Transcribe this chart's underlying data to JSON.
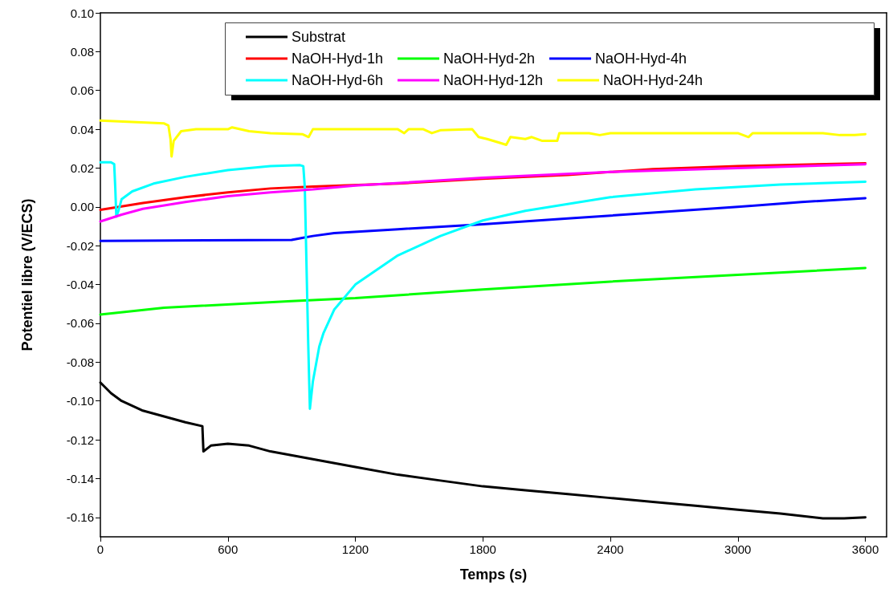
{
  "chart_data": {
    "type": "line",
    "xlabel": "Temps (s)",
    "ylabel": "Potentiel libre (V/ECS)",
    "xlim": [
      0,
      3700
    ],
    "xticks": [
      0,
      600,
      1200,
      1800,
      2400,
      3000,
      3600
    ],
    "ylim": [
      -0.17,
      0.1
    ],
    "yticks": [
      {
        "value": -0.16,
        "label": "-0.16"
      },
      {
        "value": -0.14,
        "label": "-0.14"
      },
      {
        "value": -0.12,
        "label": "-0.12"
      },
      {
        "value": -0.1,
        "label": "-0.10"
      },
      {
        "value": -0.08,
        "label": "-0.08"
      },
      {
        "value": -0.06,
        "label": "-0.06"
      },
      {
        "value": -0.04,
        "label": "-0.04"
      },
      {
        "value": -0.02,
        "label": "-0.02"
      },
      {
        "value": 0,
        "label": "0.00"
      },
      {
        "value": 0.02,
        "label": "0.02"
      },
      {
        "value": 0.04,
        "label": "0.04"
      },
      {
        "value": 0.06,
        "label": "0.06"
      },
      {
        "value": 0.08,
        "label": "0.08"
      },
      {
        "value": 0.1,
        "label": "0.10"
      }
    ],
    "grid": false,
    "legend": "top right",
    "marker": "none",
    "line_style": "solid",
    "series": [
      {
        "name": "Substrat",
        "color": "#000000",
        "x": [
          0,
          50,
          100,
          200,
          300,
          400,
          480,
          485,
          520,
          600,
          700,
          800,
          1000,
          1200,
          1400,
          1600,
          1800,
          2000,
          2200,
          2400,
          2600,
          2800,
          3000,
          3200,
          3400,
          3500,
          3600
        ],
        "values": [
          -0.0905,
          -0.096,
          -0.1,
          -0.105,
          -0.108,
          -0.111,
          -0.113,
          -0.126,
          -0.123,
          -0.122,
          -0.123,
          -0.126,
          -0.13,
          -0.134,
          -0.138,
          -0.141,
          -0.144,
          -0.146,
          -0.148,
          -0.15,
          -0.152,
          -0.154,
          -0.156,
          -0.158,
          -0.1605,
          -0.1605,
          -0.16
        ]
      },
      {
        "name": "NaOH-Hyd-1h",
        "color": "#ff0000",
        "x": [
          0,
          200,
          400,
          600,
          800,
          1000,
          1400,
          1800,
          2200,
          2600,
          3000,
          3600
        ],
        "values": [
          -0.0015,
          0.002,
          0.005,
          0.0075,
          0.0095,
          0.0105,
          0.012,
          0.0145,
          0.0165,
          0.0195,
          0.021,
          0.0225
        ]
      },
      {
        "name": "NaOH-Hyd-2h",
        "color": "#00ff00",
        "x": [
          0,
          300,
          900,
          1200,
          1800,
          2400,
          3000,
          3600
        ],
        "values": [
          -0.0555,
          -0.052,
          -0.0485,
          -0.047,
          -0.0425,
          -0.0385,
          -0.035,
          -0.0315
        ]
      },
      {
        "name": "NaOH-Hyd-4h",
        "color": "#0000ff",
        "x": [
          0,
          900,
          950,
          1000,
          1100,
          1400,
          1800,
          2200,
          2600,
          3000,
          3300,
          3600
        ],
        "values": [
          -0.0175,
          -0.017,
          -0.016,
          -0.015,
          -0.0135,
          -0.0115,
          -0.009,
          -0.006,
          -0.003,
          0.0,
          0.0025,
          0.0045
        ]
      },
      {
        "name": "NaOH-Hyd-6h",
        "color": "#00ffff",
        "x": [
          0,
          50,
          65,
          70,
          75,
          85,
          100,
          150,
          250,
          400,
          600,
          800,
          940,
          955,
          962,
          970,
          978,
          986,
          1000,
          1030,
          1050,
          1100,
          1200,
          1400,
          1600,
          1800,
          2000,
          2400,
          2800,
          3200,
          3600
        ],
        "values": [
          0.023,
          0.023,
          0.022,
          0.01,
          -0.005,
          -0.002,
          0.004,
          0.008,
          0.012,
          0.0155,
          0.019,
          0.021,
          0.0215,
          0.021,
          0.01,
          -0.03,
          -0.07,
          -0.104,
          -0.09,
          -0.072,
          -0.065,
          -0.053,
          -0.04,
          -0.025,
          -0.015,
          -0.007,
          -0.002,
          0.005,
          0.009,
          0.0115,
          0.013
        ]
      },
      {
        "name": "NaOH-Hyd-12h",
        "color": "#ff00ff",
        "x": [
          0,
          100,
          200,
          400,
          600,
          800,
          1000,
          1200,
          1800,
          2400,
          3000,
          3600
        ],
        "values": [
          -0.0075,
          -0.004,
          -0.001,
          0.0025,
          0.0055,
          0.0075,
          0.009,
          0.011,
          0.015,
          0.018,
          0.02,
          0.022
        ]
      },
      {
        "name": "NaOH-Hyd-24h",
        "color": "#ffff00",
        "x": [
          0,
          300,
          320,
          330,
          335,
          345,
          380,
          450,
          600,
          620,
          700,
          800,
          950,
          980,
          1000,
          1400,
          1430,
          1450,
          1520,
          1560,
          1600,
          1750,
          1780,
          1820,
          1880,
          1910,
          1930,
          2000,
          2030,
          2080,
          2150,
          2160,
          2300,
          2350,
          2400,
          3000,
          3050,
          3070,
          3400,
          3480,
          3550,
          3600
        ],
        "values": [
          0.0445,
          0.043,
          0.042,
          0.035,
          0.026,
          0.034,
          0.039,
          0.04,
          0.04,
          0.041,
          0.039,
          0.038,
          0.0375,
          0.036,
          0.04,
          0.04,
          0.038,
          0.04,
          0.04,
          0.038,
          0.0395,
          0.04,
          0.036,
          0.035,
          0.033,
          0.032,
          0.036,
          0.035,
          0.036,
          0.034,
          0.034,
          0.038,
          0.038,
          0.037,
          0.038,
          0.038,
          0.036,
          0.038,
          0.038,
          0.037,
          0.037,
          0.0375
        ]
      }
    ]
  }
}
